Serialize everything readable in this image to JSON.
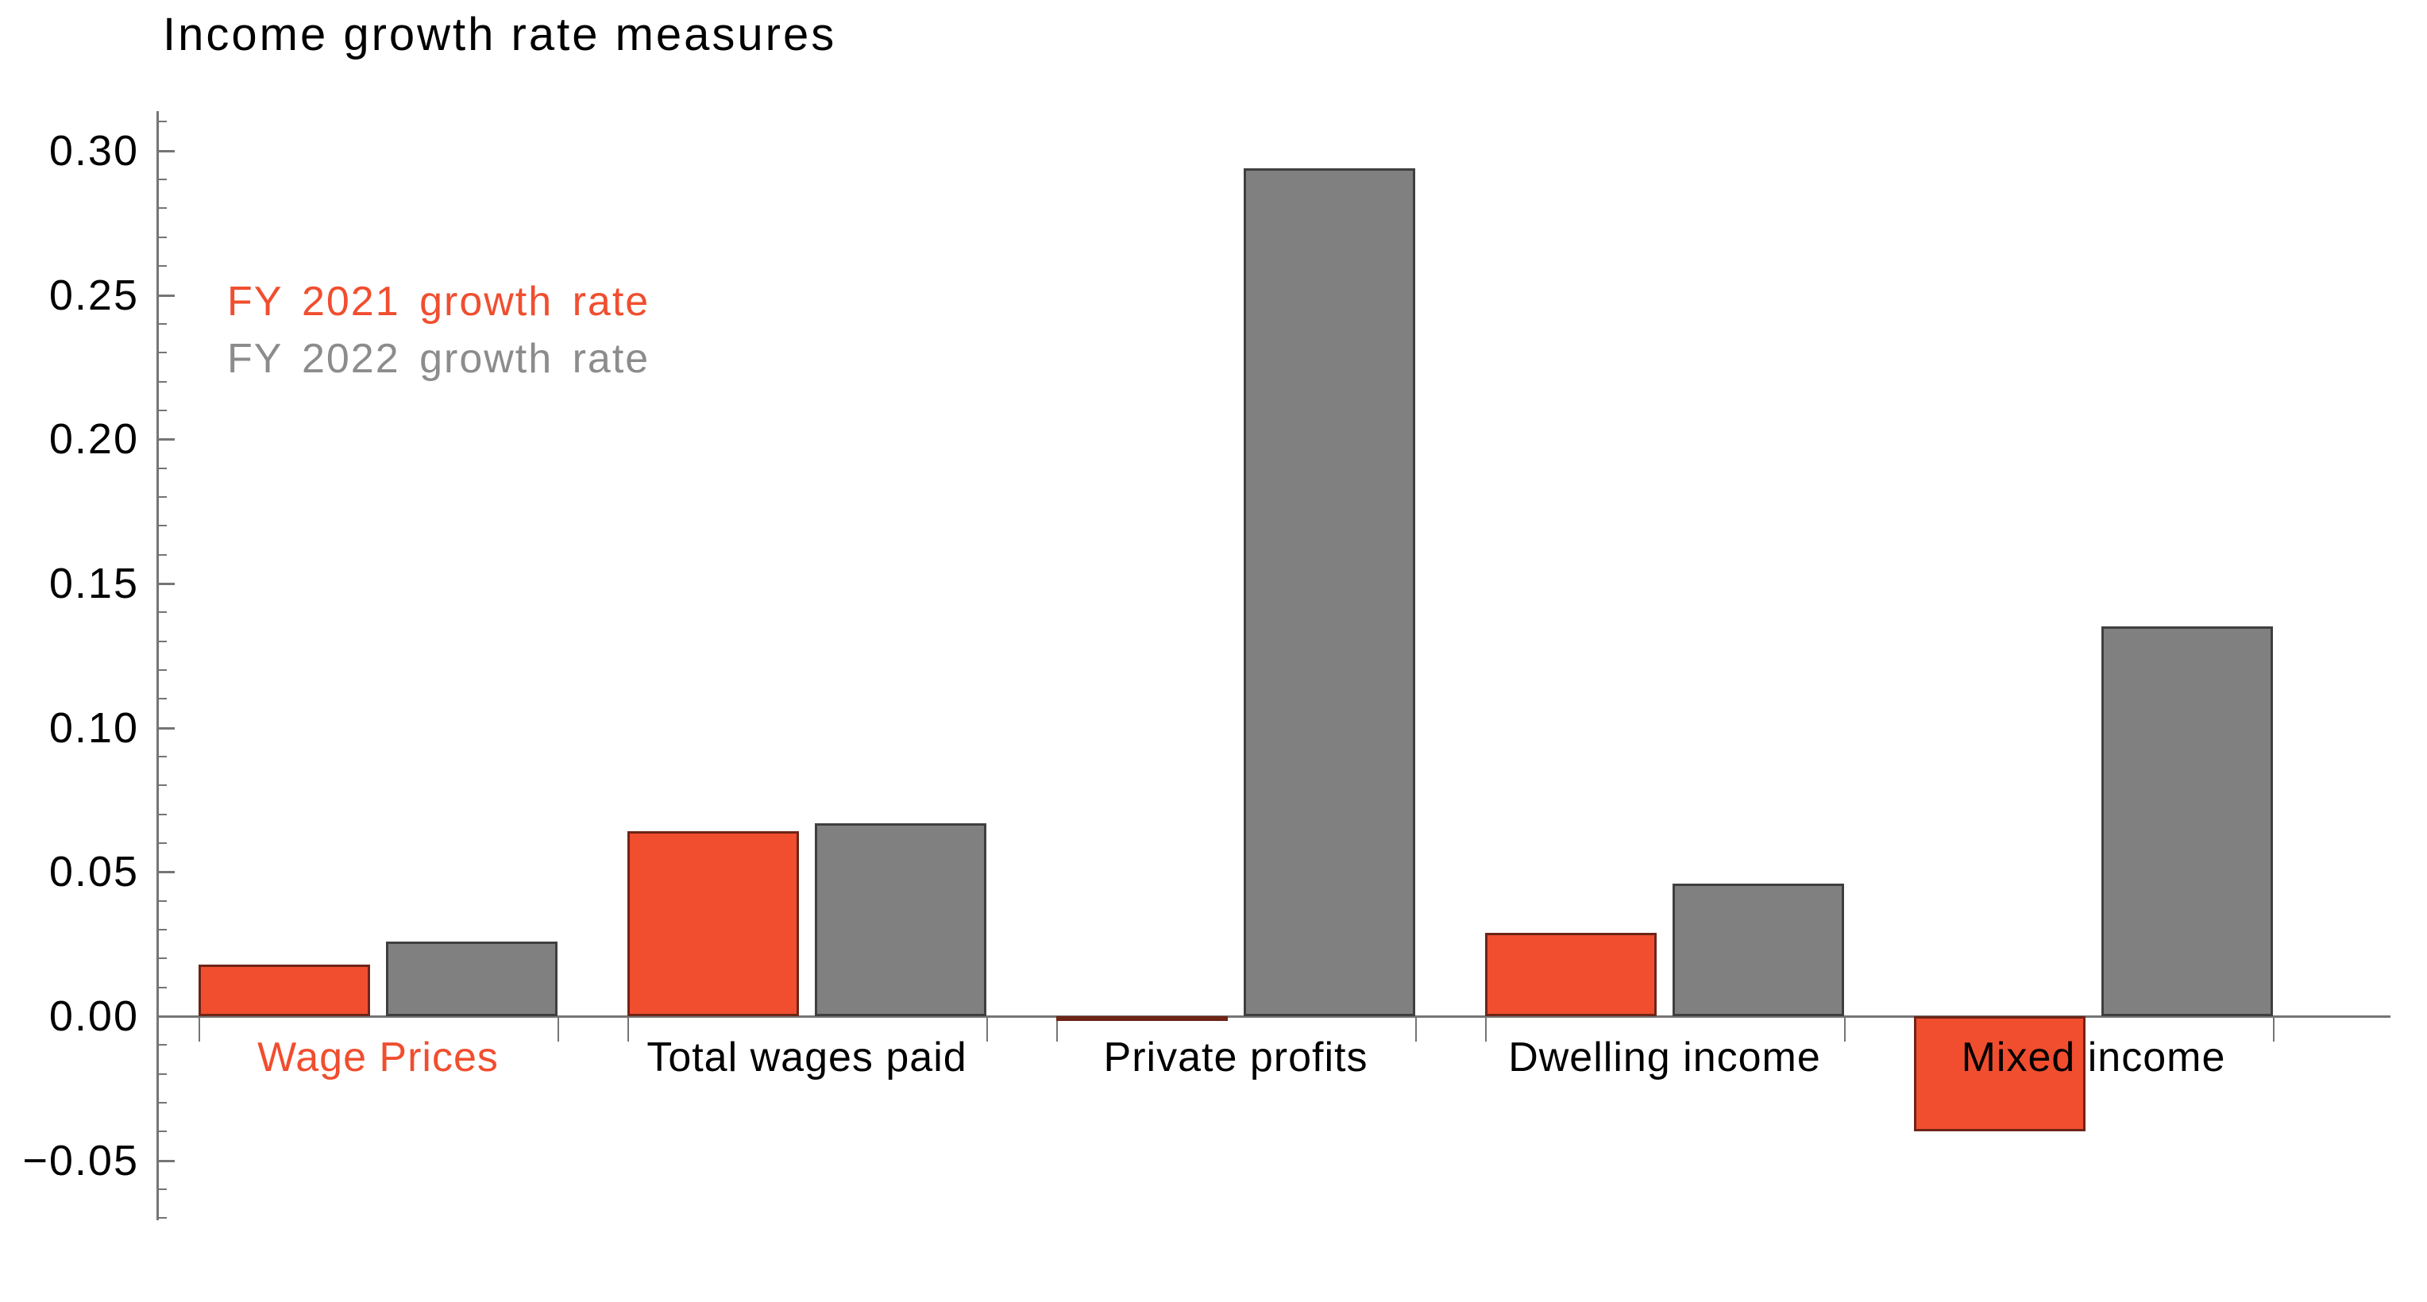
{
  "title": "Income growth rate measures",
  "legend": {
    "items": [
      {
        "label": "FY 2021 growth rate",
        "color": "#F04E2F"
      },
      {
        "label": "FY 2022 growth rate",
        "color": "#8C8C8C"
      }
    ]
  },
  "chart_data": {
    "type": "bar",
    "title": "Income growth rate measures",
    "categories": [
      {
        "label": "Wage Prices",
        "label_color": "#F04E2F"
      },
      {
        "label": "Total wages paid",
        "label_color": "#000000"
      },
      {
        "label": "Private profits",
        "label_color": "#000000"
      },
      {
        "label": "Dwelling income",
        "label_color": "#000000"
      },
      {
        "label": "Mixed income",
        "label_color": "#000000"
      }
    ],
    "series": [
      {
        "name": "FY 2021 growth rate",
        "color": "#F04E2F",
        "edge_color": "#6E2517",
        "values": [
          0.018,
          0.064,
          -0.001,
          0.029,
          -0.04
        ]
      },
      {
        "name": "FY 2022 growth rate",
        "color": "#808080",
        "edge_color": "#3F3F3F",
        "values": [
          0.026,
          0.067,
          0.294,
          0.046,
          0.135
        ]
      }
    ],
    "ylabel": "",
    "xlabel": "",
    "ylim": [
      -0.07,
      0.31
    ],
    "yticks_major": [
      {
        "value": 0.3,
        "label": "0.30"
      },
      {
        "value": 0.25,
        "label": "0.25"
      },
      {
        "value": 0.2,
        "label": "0.20"
      },
      {
        "value": 0.15,
        "label": "0.15"
      },
      {
        "value": 0.1,
        "label": "0.10"
      },
      {
        "value": 0.05,
        "label": "0.05"
      },
      {
        "value": 0.0,
        "label": "0.00"
      },
      {
        "value": -0.05,
        "label": "−0.05"
      }
    ],
    "ytick_minor_step": 0.01,
    "grid": false,
    "legend_position": "upper-left-inside",
    "axis_color": "#757575"
  }
}
